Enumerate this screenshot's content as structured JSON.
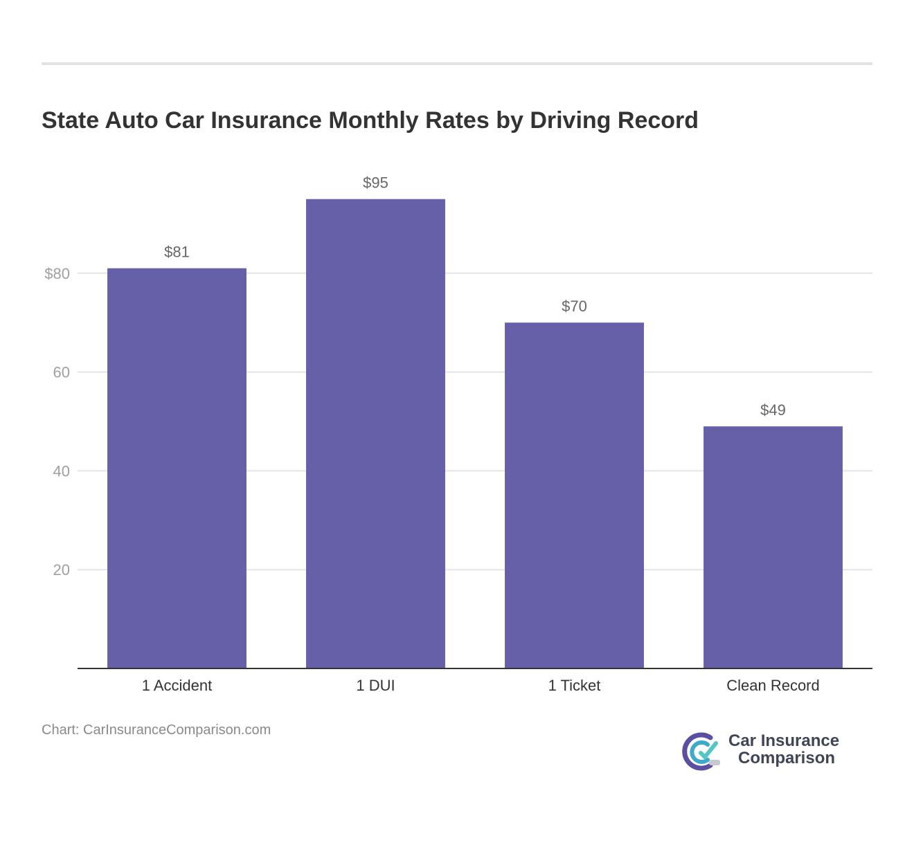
{
  "title": "State Auto Car Insurance Monthly Rates by Driving Record",
  "source": "Chart: CarInsuranceComparison.com",
  "logo": {
    "line1": "Car Insurance",
    "line2": "Comparison"
  },
  "colors": {
    "bar": "#6560a7",
    "grid": "#e5e5e5",
    "axis": "#333333",
    "tick_text": "#a0a0a0",
    "label_text": "#333333",
    "value_text": "#666666"
  },
  "chart_data": {
    "type": "bar",
    "categories": [
      "1 Accident",
      "1 DUI",
      "1 Ticket",
      "Clean Record"
    ],
    "values": [
      81,
      95,
      70,
      49
    ],
    "value_labels": [
      "$81",
      "$95",
      "$70",
      "$49"
    ],
    "yticks": [
      20,
      40,
      60,
      80
    ],
    "ytick_labels": [
      "20",
      "40",
      "60",
      "$80"
    ],
    "ylim": [
      0,
      100
    ],
    "grid": true,
    "legend": "none"
  }
}
